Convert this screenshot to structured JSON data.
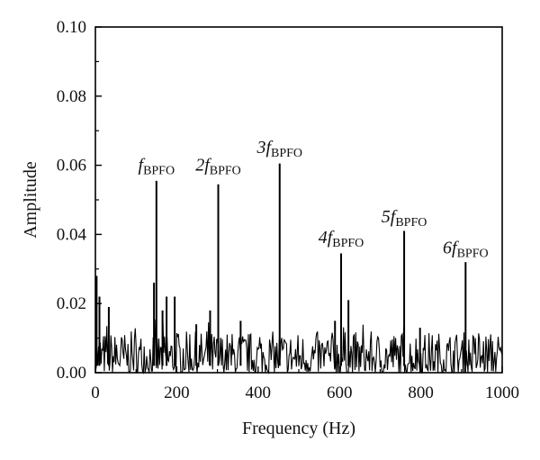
{
  "chart_data": {
    "type": "line",
    "xlabel": "Frequency (Hz)",
    "ylabel": "Amplitude",
    "xlim": [
      0,
      1000
    ],
    "ylim": [
      0,
      0.1
    ],
    "xticks": [
      "0",
      "200",
      "400",
      "600",
      "800",
      "1000"
    ],
    "yticks": [
      "0.00",
      "0.02",
      "0.04",
      "0.06",
      "0.08",
      "0.10"
    ],
    "grid": false,
    "line_color": "#000000",
    "noise_floor": {
      "x_range": [
        0,
        1000
      ],
      "typical_amplitude": [
        0.0,
        0.012
      ]
    },
    "peaks": [
      {
        "x": 3,
        "y": 0.028
      },
      {
        "x": 10,
        "y": 0.022
      },
      {
        "x": 33,
        "y": 0.019
      },
      {
        "x": 144,
        "y": 0.026
      },
      {
        "x": 150,
        "y": 0.0555
      },
      {
        "x": 165,
        "y": 0.018
      },
      {
        "x": 175,
        "y": 0.022
      },
      {
        "x": 195,
        "y": 0.022
      },
      {
        "x": 248,
        "y": 0.014
      },
      {
        "x": 282,
        "y": 0.018
      },
      {
        "x": 302,
        "y": 0.0545
      },
      {
        "x": 357,
        "y": 0.015
      },
      {
        "x": 453,
        "y": 0.0605
      },
      {
        "x": 589,
        "y": 0.015
      },
      {
        "x": 604,
        "y": 0.0345
      },
      {
        "x": 622,
        "y": 0.021
      },
      {
        "x": 759,
        "y": 0.041
      },
      {
        "x": 798,
        "y": 0.013
      },
      {
        "x": 910,
        "y": 0.032
      }
    ],
    "annotations": [
      {
        "prefix": "",
        "italic": "f",
        "sub": "BPFO",
        "x": 150,
        "y": 0.0585
      },
      {
        "prefix": "2",
        "italic": "f",
        "sub": "BPFO",
        "x": 302,
        "y": 0.0585
      },
      {
        "prefix": "3",
        "italic": "f",
        "sub": "BPFO",
        "x": 453,
        "y": 0.0635
      },
      {
        "prefix": "4",
        "italic": "f",
        "sub": "BPFO",
        "x": 604,
        "y": 0.0375
      },
      {
        "prefix": "5",
        "italic": "f",
        "sub": "BPFO",
        "x": 759,
        "y": 0.0435
      },
      {
        "prefix": "6",
        "italic": "f",
        "sub": "BPFO",
        "x": 910,
        "y": 0.0345
      }
    ]
  }
}
